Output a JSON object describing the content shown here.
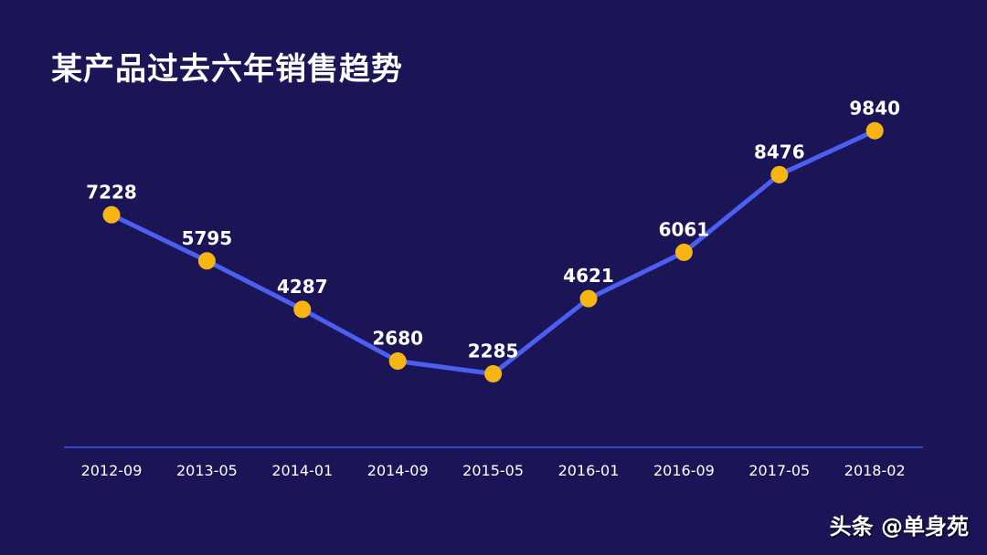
{
  "title": "某产品过去六年销售趋势",
  "watermark": "头条 @单身苑",
  "colors": {
    "background": "#1b1558",
    "line": "#4b5ff0",
    "marker": "#f7b514",
    "axis": "#3f57e6",
    "text": "#ffffff"
  },
  "chart_data": {
    "type": "line",
    "title": "某产品过去六年销售趋势",
    "categories": [
      "2012-09",
      "2013-05",
      "2014-01",
      "2014-09",
      "2015-05",
      "2016-01",
      "2016-09",
      "2017-05",
      "2018-02"
    ],
    "series": [
      {
        "values": [
          7228,
          5795,
          4287,
          2680,
          2285,
          4621,
          6061,
          8476,
          9840
        ]
      }
    ],
    "xlabel": "",
    "ylabel": "",
    "ylim": [
      0,
      10500
    ],
    "grid": false,
    "legend": "none",
    "data_labels": true
  }
}
